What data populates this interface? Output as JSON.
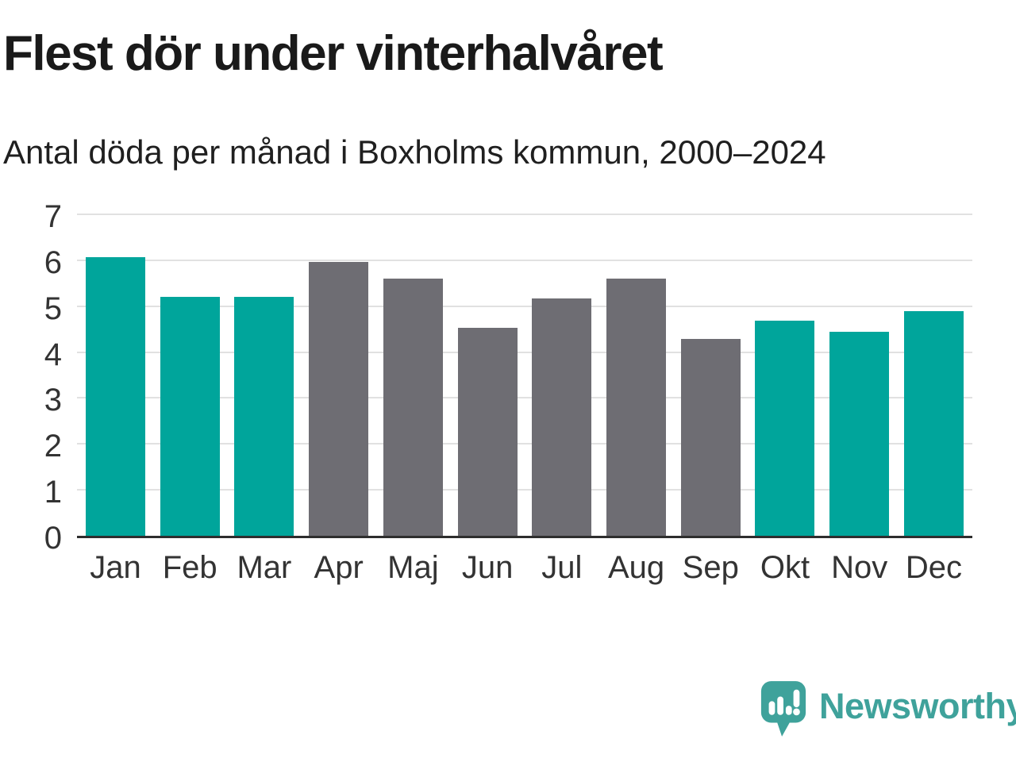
{
  "header": {
    "title": "Flest dör under vinterhalvåret",
    "subtitle": "Antal döda per månad i Boxholms kommun, 2000–2024"
  },
  "chart_data": {
    "type": "bar",
    "title": "Flest dör under vinterhalvåret",
    "subtitle": "Antal döda per månad i Boxholms kommun, 2000–2024",
    "categories": [
      "Jan",
      "Feb",
      "Mar",
      "Apr",
      "Maj",
      "Jun",
      "Jul",
      "Aug",
      "Sep",
      "Okt",
      "Nov",
      "Dec"
    ],
    "values": [
      6.12,
      5.24,
      5.24,
      6.0,
      5.64,
      4.56,
      5.2,
      5.64,
      4.32,
      4.72,
      4.48,
      4.92
    ],
    "bar_colors": [
      "#00a59b",
      "#00a59b",
      "#00a59b",
      "#6e6d73",
      "#6e6d73",
      "#6e6d73",
      "#6e6d73",
      "#6e6d73",
      "#6e6d73",
      "#00a59b",
      "#00a59b",
      "#00a59b"
    ],
    "xlabel": "",
    "ylabel": "",
    "ylim": [
      0,
      7
    ],
    "yticks": [
      0,
      1,
      2,
      3,
      4,
      5,
      6,
      7
    ],
    "grid": "horizontal",
    "legend": "none",
    "colors": {
      "highlight_teal": "#00a59b",
      "neutral_gray": "#6e6d73",
      "gridline": "#e1e1e1",
      "axis_line": "#2e2e2e"
    }
  },
  "footer": {
    "brand": "Newsworthy",
    "logo_icon": "newsworthy-speech-bubble-chart-icon",
    "brand_color": "#3fa29b"
  }
}
